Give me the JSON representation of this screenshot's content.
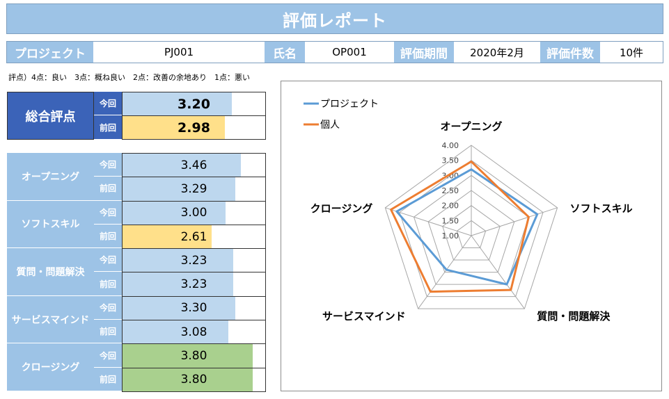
{
  "title": "評価レポート",
  "info": {
    "project_label": "プロジェクト",
    "project_value": "PJ001",
    "name_label": "氏名",
    "name_value": "OP001",
    "period_label": "評価期間",
    "period_value": "2020年2月",
    "count_label": "評価件数",
    "count_value": "10件"
  },
  "scale_note": "評点）4点：良い　3点：概ね良い　2点：改善の余地あり　1点：悪い",
  "overall": {
    "label": "総合評点",
    "current_tag": "今回",
    "previous_tag": "前回",
    "current": "3.20",
    "previous": "2.98"
  },
  "categories": [
    {
      "name": "オープニング",
      "current_tag": "今回",
      "previous_tag": "前回",
      "current": "3.46",
      "previous": "3.29"
    },
    {
      "name": "ソフトスキル",
      "current_tag": "今回",
      "previous_tag": "前回",
      "current": "3.00",
      "previous": "2.61"
    },
    {
      "name": "質問・問題解決",
      "current_tag": "今回",
      "previous_tag": "前回",
      "current": "3.23",
      "previous": "3.23"
    },
    {
      "name": "サービスマインド",
      "current_tag": "今回",
      "previous_tag": "前回",
      "current": "3.30",
      "previous": "3.08"
    },
    {
      "name": "クロージング",
      "current_tag": "今回",
      "previous_tag": "前回",
      "current": "3.80",
      "previous": "3.80"
    }
  ],
  "colors": {
    "header_blue": "#9dc3e6",
    "dark_blue": "#3b63b8",
    "bar_blue": "#bdd7ee",
    "bar_yellow": "#ffe08a",
    "bar_green": "#a9d08e",
    "series_project": "#5b9bd5",
    "series_person": "#ed7d31"
  },
  "chart_data": {
    "type": "radar",
    "axes": [
      "オープニング",
      "ソフトスキル",
      "質問・問題解決",
      "サービスマインド",
      "クロージング"
    ],
    "ticks": [
      "1.00",
      "1.50",
      "2.00",
      "2.50",
      "3.00",
      "3.50",
      "4.00"
    ],
    "range": [
      1.0,
      4.0
    ],
    "legend_position": "top-left",
    "series": [
      {
        "name": "プロジェクト",
        "color": "#5b9bd5",
        "values": [
          3.2,
          3.3,
          3.0,
          2.4,
          3.6
        ]
      },
      {
        "name": "個人",
        "color": "#ed7d31",
        "values": [
          3.46,
          3.0,
          3.23,
          3.3,
          3.8
        ]
      }
    ]
  }
}
